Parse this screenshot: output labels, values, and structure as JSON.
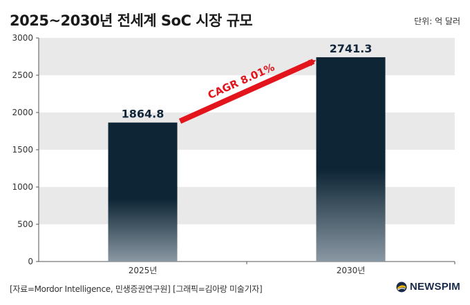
{
  "title": "2025~2030년 전세계 SoC 시장 규모",
  "unit": "단위: 억 달러",
  "source": "[자료=Mordor Intelligence, 민생증권연구원] [그래픽=김아랑 미술기자]",
  "brand": {
    "name": "NEWSPIM",
    "logo_icon": "newspim-logo-icon"
  },
  "chart_data": {
    "type": "bar",
    "categories": [
      "2025년",
      "2030년"
    ],
    "values": [
      1864.8,
      2741.3
    ],
    "value_labels": [
      "1864.8",
      "2741.3"
    ],
    "ylim": [
      0,
      3000
    ],
    "yticks": [
      0,
      500,
      1000,
      1500,
      2000,
      2500,
      3000
    ],
    "grid": "alternating horizontal bands",
    "annotation": {
      "text": "CAGR 8.01%",
      "color": "#e3141b",
      "from": "2025년",
      "to": "2030년"
    },
    "bar_color_top": "#0e2535",
    "bar_color_bottom": "#8a98a3",
    "band_color": "#e9e9e9"
  }
}
